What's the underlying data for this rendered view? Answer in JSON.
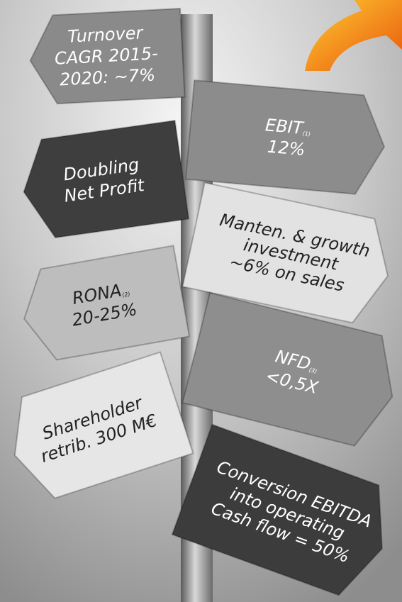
{
  "signs": [
    {
      "lines": [
        "Turnover",
        "CAGR 2015-",
        "2020: ~7%"
      ]
    },
    {
      "lines": [
        "EBIT",
        "12%"
      ],
      "note": "(1)"
    },
    {
      "lines": [
        "Doubling",
        "Net Profit"
      ]
    },
    {
      "lines": [
        "Manten. & growth",
        "investment",
        "~6% on sales"
      ]
    },
    {
      "lines": [
        "RONA",
        "20-25%"
      ],
      "note": "(2)"
    },
    {
      "lines": [
        "NFD",
        "<0,5X"
      ],
      "note": "(3)"
    },
    {
      "lines": [
        "Shareholder",
        "retrib. 300 M€"
      ]
    },
    {
      "lines": [
        "Conversion EBITDA",
        "into operating",
        "Cash flow = 50%"
      ]
    }
  ]
}
